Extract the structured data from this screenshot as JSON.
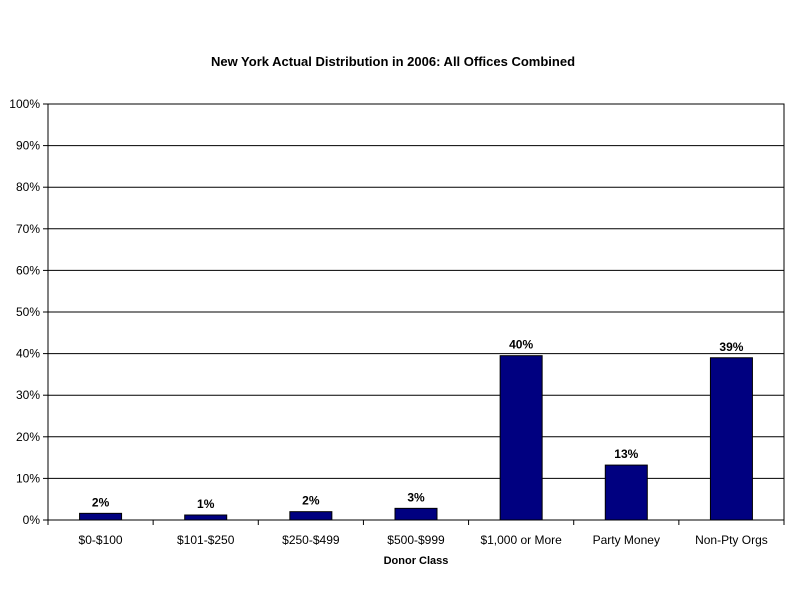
{
  "chart_data": {
    "type": "bar",
    "title": "New York Actual Distribution in 2006: All Offices Combined",
    "xlabel": "Donor Class",
    "ylabel": "",
    "categories": [
      "$0-$100",
      "$101-$250",
      "$250-$499",
      "$500-$999",
      "$1,000 or More",
      "Party Money",
      "Non-Pty Orgs"
    ],
    "values": [
      1.6,
      1.2,
      2.0,
      2.8,
      39.5,
      13.2,
      39.0
    ],
    "data_labels": [
      "2%",
      "1%",
      "2%",
      "3%",
      "40%",
      "13%",
      "39%"
    ],
    "ylim": [
      0,
      100
    ],
    "yticks": [
      "0%",
      "10%",
      "20%",
      "30%",
      "40%",
      "50%",
      "60%",
      "70%",
      "80%",
      "90%",
      "100%"
    ],
    "grid": true,
    "legend": "none",
    "bar_color": "#000080"
  }
}
